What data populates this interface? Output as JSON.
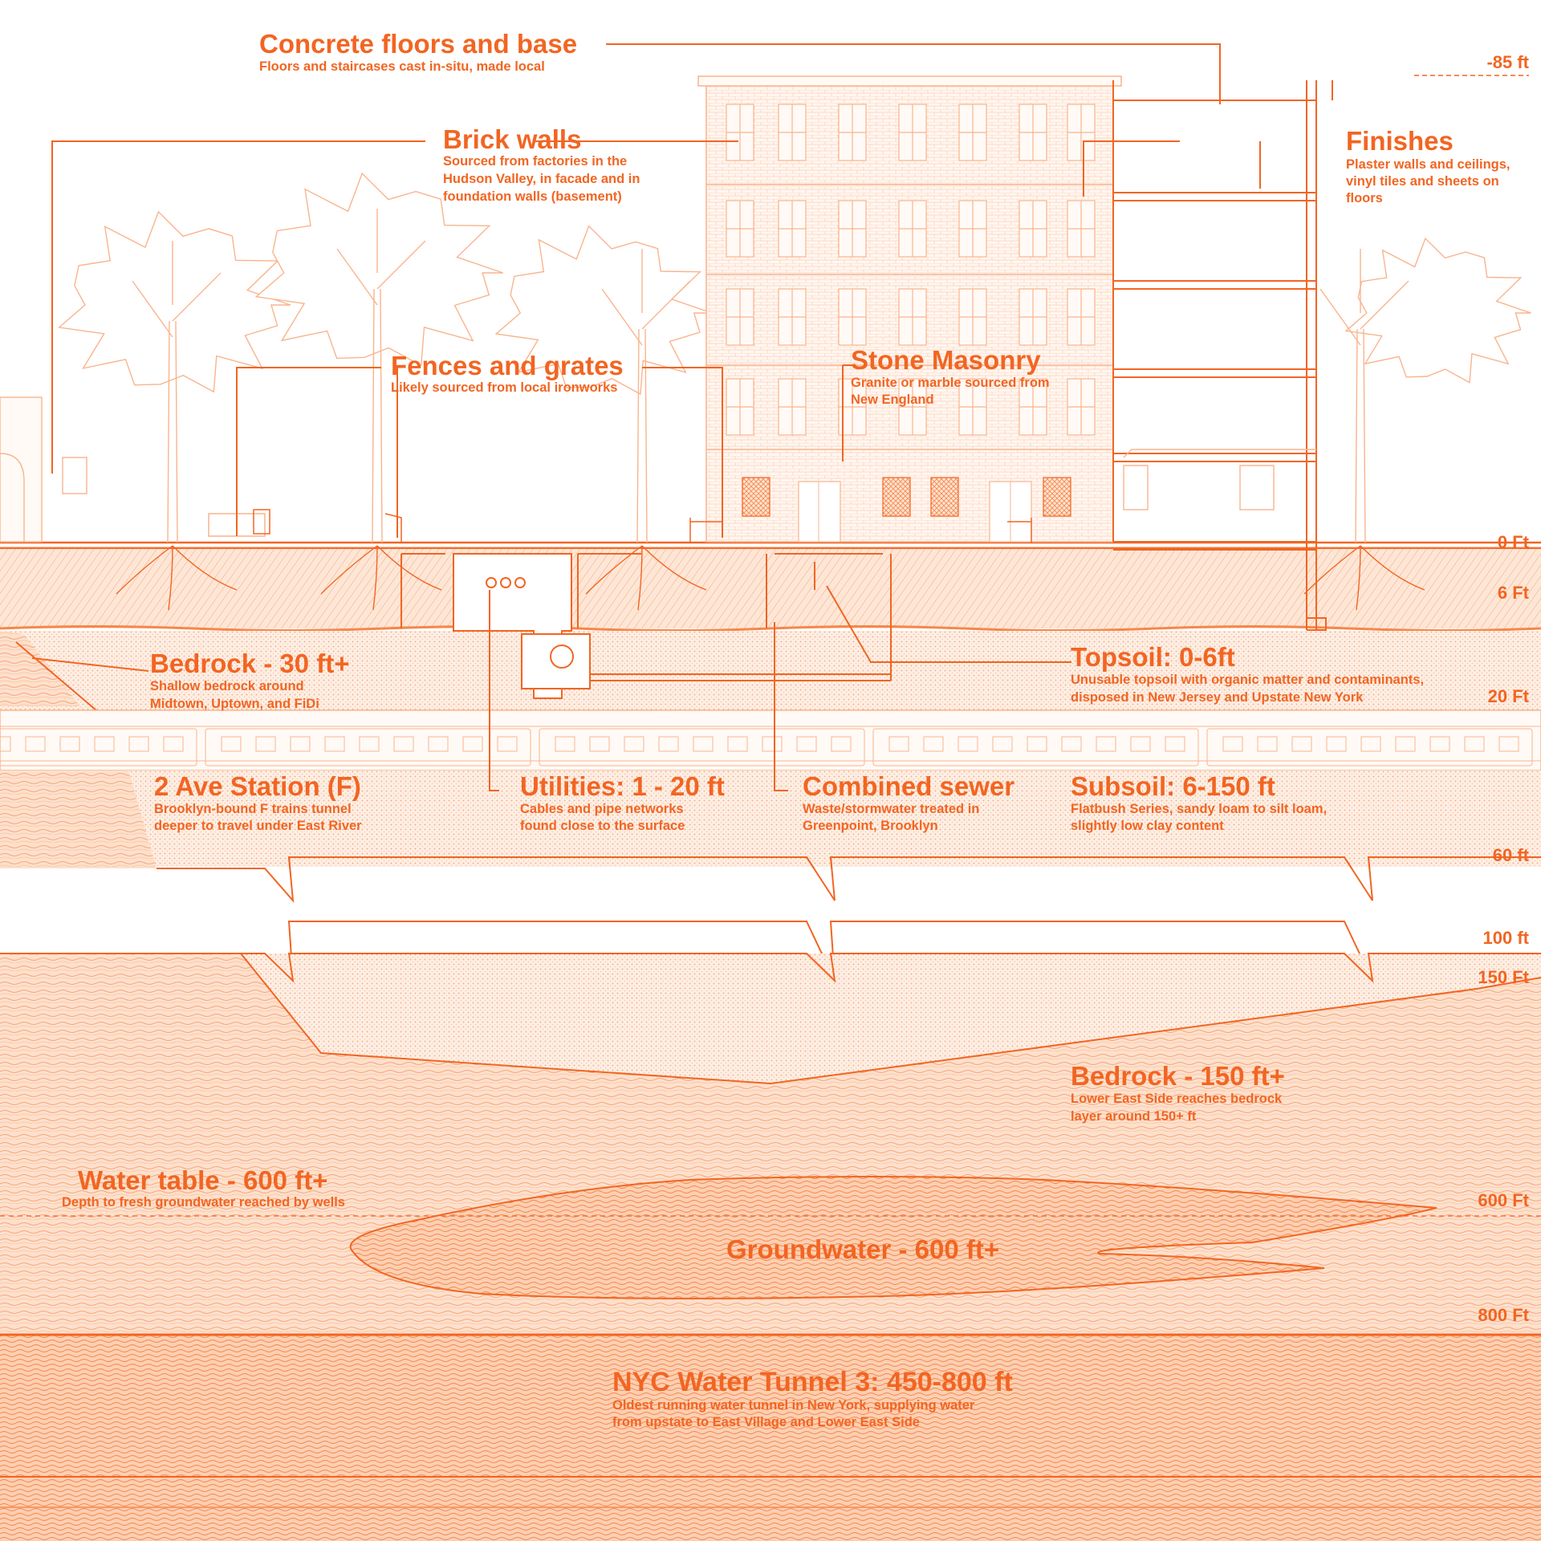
{
  "colors": {
    "accent": "#f26522",
    "line_light": "#f9b48d",
    "fill_light": "#fde3d2",
    "fill_mid": "#fcd2b7",
    "background": "#ffffff"
  },
  "depth_markers": [
    "-85 ft",
    "0 Ft",
    "6 Ft",
    "20 Ft",
    "60 ft",
    "100 ft",
    "150 Ft",
    "600 Ft",
    "800 Ft"
  ],
  "callouts": {
    "concrete": {
      "title": "Concrete floors and base",
      "lines": [
        "Floors and staircases cast in-situ, made local"
      ]
    },
    "brick": {
      "title": "Brick walls",
      "lines": [
        "Sourced from factories in the",
        "Hudson Valley, in facade and in",
        "foundation walls (basement)"
      ]
    },
    "finishes": {
      "title": "Finishes",
      "lines": [
        "Plaster walls and ceilings,",
        "vinyl tiles and sheets on",
        "floors"
      ]
    },
    "fences": {
      "title": "Fences and grates",
      "lines": [
        "Likely sourced from local ironworks"
      ]
    },
    "stone": {
      "title": "Stone Masonry",
      "lines": [
        "Granite or marble sourced from",
        "New England"
      ]
    },
    "bedrock30": {
      "title": "Bedrock - 30 ft+",
      "lines": [
        "Shallow bedrock around",
        "Midtown, Uptown, and FiDi"
      ]
    },
    "topsoil": {
      "title": "Topsoil: 0-6ft",
      "lines": [
        "Unusable topsoil with organic matter and contaminants,",
        "disposed in New Jersey and Upstate New York"
      ]
    },
    "station": {
      "title": "2 Ave Station (F)",
      "lines": [
        "Brooklyn-bound F trains tunnel",
        "deeper to travel under East River"
      ]
    },
    "utilities": {
      "title": "Utilities: 1 - 20 ft",
      "lines": [
        "Cables and pipe networks",
        "found close to the surface"
      ]
    },
    "sewer": {
      "title": "Combined sewer",
      "lines": [
        "Waste/stormwater treated in",
        "Greenpoint, Brooklyn"
      ]
    },
    "subsoil": {
      "title": "Subsoil: 6-150 ft",
      "lines": [
        "Flatbush Series, sandy loam to silt loam,",
        "slightly low clay content"
      ]
    },
    "bedrock150": {
      "title": "Bedrock - 150 ft+",
      "lines": [
        "Lower East Side reaches bedrock",
        "layer around 150+ ft"
      ]
    },
    "watertable": {
      "title": "Water table - 600 ft+",
      "lines": [
        "Depth to fresh groundwater reached by wells"
      ]
    },
    "groundwater": {
      "title": "Groundwater - 600 ft+"
    },
    "tunnel": {
      "title": "NYC Water Tunnel 3: 450-800 ft",
      "lines": [
        "Oldest running water tunnel in New York, supplying water",
        "from upstate to East Village and Lower East Side"
      ]
    }
  }
}
